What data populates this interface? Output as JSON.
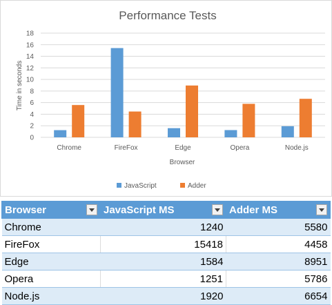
{
  "chart_data": {
    "type": "bar",
    "title": "Performance Tests",
    "xlabel": "Browser",
    "ylabel": "Time in seconds",
    "ylim": [
      0,
      18
    ],
    "yticks": [
      0,
      2,
      4,
      6,
      8,
      10,
      12,
      14,
      16,
      18
    ],
    "categories": [
      "Chrome",
      "FireFox",
      "Edge",
      "Opera",
      "Node.js"
    ],
    "series": [
      {
        "name": "JavaScript",
        "color": "#5b9bd5",
        "values": [
          1.24,
          15.418,
          1.584,
          1.251,
          1.92
        ]
      },
      {
        "name": "Adder",
        "color": "#ed7d31",
        "values": [
          5.58,
          4.458,
          8.951,
          5.786,
          6.654
        ]
      }
    ],
    "grid": true,
    "legend_position": "bottom"
  },
  "table": {
    "headers": [
      "Browser",
      "JavaScript MS",
      "Adder MS"
    ],
    "rows": [
      [
        "Chrome",
        "1240",
        "5580"
      ],
      [
        "FireFox",
        "15418",
        "4458"
      ],
      [
        "Edge",
        "1584",
        "8951"
      ],
      [
        "Opera",
        "1251",
        "5786"
      ],
      [
        "Node.js",
        "1920",
        "6654"
      ]
    ],
    "header_color": "#5b9bd5",
    "band_color": "#ddebf7"
  }
}
